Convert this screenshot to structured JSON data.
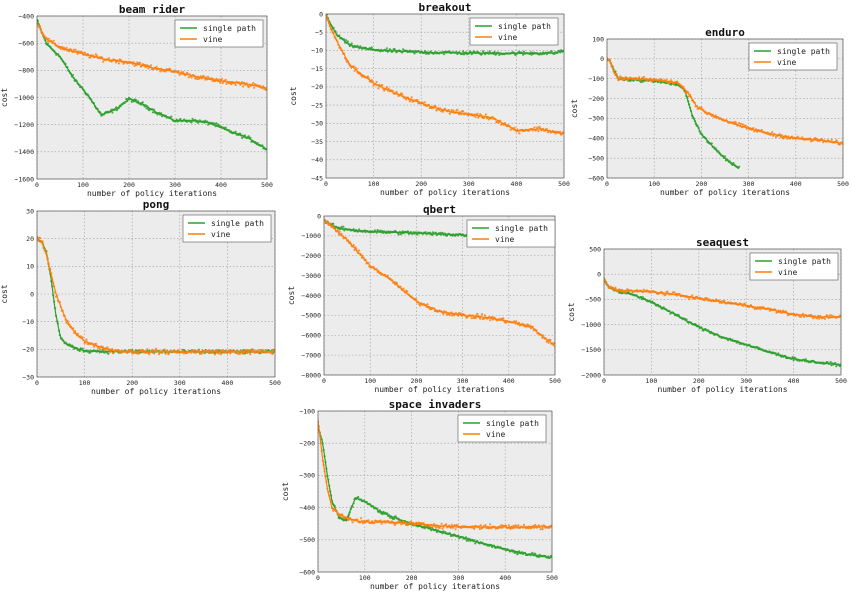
{
  "colors": {
    "single_path": "#2ca02c",
    "vine": "#ff7f0e",
    "plot_bg": "#ececec",
    "grid": "#9a9a9a"
  },
  "chart_data": [
    {
      "type": "line",
      "title": "beam rider",
      "xlabel": "number of policy iterations",
      "ylabel": "cost",
      "xlim": [
        0,
        500
      ],
      "ylim": [
        -1600,
        -400
      ],
      "xticks": [
        0,
        100,
        200,
        300,
        400,
        500
      ],
      "yticks": [
        -400,
        -600,
        -800,
        -1000,
        -1200,
        -1400,
        -1600
      ],
      "legend": [
        "single path",
        "vine"
      ],
      "series": [
        {
          "name": "single path",
          "x": [
            0,
            20,
            50,
            80,
            110,
            140,
            170,
            200,
            230,
            260,
            300,
            340,
            380,
            420,
            460,
            500
          ],
          "values": [
            -430,
            -600,
            -700,
            -860,
            -980,
            -1130,
            -1090,
            -1010,
            -1050,
            -1110,
            -1170,
            -1170,
            -1190,
            -1250,
            -1300,
            -1380
          ]
        },
        {
          "name": "vine",
          "x": [
            0,
            20,
            50,
            100,
            150,
            200,
            250,
            300,
            350,
            400,
            450,
            500
          ],
          "values": [
            -450,
            -570,
            -630,
            -680,
            -720,
            -740,
            -780,
            -810,
            -850,
            -880,
            -900,
            -930
          ]
        }
      ]
    },
    {
      "type": "line",
      "title": "breakout",
      "xlabel": "number of policy iterations",
      "ylabel": "cost",
      "xlim": [
        0,
        500
      ],
      "ylim": [
        -45,
        0
      ],
      "xticks": [
        0,
        100,
        200,
        300,
        400,
        500
      ],
      "yticks": [
        0,
        -5,
        -10,
        -15,
        -20,
        -25,
        -30,
        -35,
        -40,
        -45
      ],
      "legend": [
        "single path",
        "vine"
      ],
      "series": [
        {
          "name": "single path",
          "x": [
            0,
            10,
            25,
            50,
            80,
            120,
            200,
            300,
            400,
            480,
            500
          ],
          "values": [
            0,
            -3,
            -6,
            -8.5,
            -9.5,
            -10,
            -10.5,
            -10.7,
            -10.8,
            -10.7,
            -10
          ]
        },
        {
          "name": "vine",
          "x": [
            0,
            10,
            25,
            50,
            100,
            150,
            200,
            250,
            300,
            350,
            400,
            450,
            500
          ],
          "values": [
            0,
            -4,
            -8,
            -14,
            -19,
            -22,
            -24.5,
            -26.5,
            -27.5,
            -28.5,
            -32,
            -31.5,
            -33
          ]
        }
      ]
    },
    {
      "type": "line",
      "title": "enduro",
      "xlabel": "number of policy iterations",
      "ylabel": "cost",
      "xlim": [
        0,
        500
      ],
      "ylim": [
        -600,
        100
      ],
      "xticks": [
        0,
        100,
        200,
        300,
        400,
        500
      ],
      "yticks": [
        100,
        0,
        -100,
        -200,
        -300,
        -400,
        -500,
        -600
      ],
      "legend": [
        "single path",
        "vine"
      ],
      "series": [
        {
          "name": "single path",
          "x": [
            0,
            5,
            15,
            25,
            50,
            100,
            150,
            165,
            180,
            200,
            220,
            240,
            260,
            280
          ],
          "values": [
            0,
            -5,
            -60,
            -100,
            -105,
            -110,
            -130,
            -160,
            -280,
            -380,
            -430,
            -480,
            -520,
            -550
          ]
        },
        {
          "name": "vine",
          "x": [
            0,
            5,
            15,
            25,
            50,
            100,
            150,
            175,
            190,
            210,
            250,
            300,
            350,
            400,
            450,
            500
          ],
          "values": [
            0,
            -5,
            -70,
            -100,
            -100,
            -105,
            -120,
            -180,
            -240,
            -270,
            -310,
            -350,
            -380,
            -400,
            -410,
            -425
          ]
        }
      ]
    },
    {
      "type": "line",
      "title": "pong",
      "xlabel": "number of policy iterations",
      "ylabel": "cost",
      "xlim": [
        0,
        500
      ],
      "ylim": [
        -30,
        30
      ],
      "xticks": [
        0,
        100,
        200,
        300,
        400,
        500
      ],
      "yticks": [
        30,
        20,
        10,
        0,
        -10,
        -20,
        -30
      ],
      "legend": [
        "single path",
        "vine"
      ],
      "series": [
        {
          "name": "single path",
          "x": [
            0,
            10,
            20,
            30,
            40,
            50,
            60,
            80,
            100,
            150,
            200,
            300,
            400,
            500
          ],
          "values": [
            20,
            19,
            15,
            5,
            -8,
            -16,
            -18,
            -19.5,
            -20.5,
            -20.8,
            -20.8,
            -20.9,
            -20.9,
            -20.9
          ]
        },
        {
          "name": "vine",
          "x": [
            0,
            10,
            20,
            30,
            40,
            60,
            80,
            100,
            130,
            160,
            200,
            300,
            400,
            500
          ],
          "values": [
            20,
            19,
            14,
            7,
            0,
            -9,
            -14,
            -17,
            -19,
            -20.5,
            -20.8,
            -20.9,
            -20.9,
            -20.9
          ]
        }
      ]
    },
    {
      "type": "line",
      "title": "qbert",
      "xlabel": "number of policy iterations",
      "ylabel": "cost",
      "xlim": [
        0,
        500
      ],
      "ylim": [
        -8000,
        0
      ],
      "xticks": [
        0,
        100,
        200,
        300,
        400,
        500
      ],
      "yticks": [
        0,
        -1000,
        -2000,
        -3000,
        -4000,
        -5000,
        -6000,
        -7000,
        -8000
      ],
      "legend": [
        "single path",
        "vine"
      ],
      "series": [
        {
          "name": "single path",
          "x": [
            0,
            10,
            30,
            60,
            100,
            150,
            200,
            250,
            300,
            310
          ],
          "values": [
            -200,
            -400,
            -600,
            -700,
            -780,
            -820,
            -860,
            -900,
            -950,
            -1000
          ]
        },
        {
          "name": "vine",
          "x": [
            0,
            20,
            50,
            100,
            150,
            200,
            250,
            300,
            350,
            400,
            450,
            480,
            500
          ],
          "values": [
            -200,
            -600,
            -1200,
            -2500,
            -3300,
            -4300,
            -4800,
            -5000,
            -5100,
            -5300,
            -5600,
            -6200,
            -6500
          ]
        }
      ]
    },
    {
      "type": "line",
      "title": "seaquest",
      "xlabel": "number of policy iterations",
      "ylabel": "cost",
      "xlim": [
        0,
        500
      ],
      "ylim": [
        -2000,
        500
      ],
      "xticks": [
        0,
        100,
        200,
        300,
        400,
        500
      ],
      "yticks": [
        500,
        0,
        -500,
        -1000,
        -1500,
        -2000
      ],
      "legend": [
        "single path",
        "vine"
      ],
      "series": [
        {
          "name": "single path",
          "x": [
            0,
            10,
            30,
            60,
            100,
            150,
            200,
            250,
            300,
            350,
            400,
            450,
            500
          ],
          "values": [
            -100,
            -250,
            -350,
            -400,
            -550,
            -800,
            -1050,
            -1250,
            -1400,
            -1550,
            -1680,
            -1750,
            -1800
          ]
        },
        {
          "name": "vine",
          "x": [
            0,
            10,
            30,
            60,
            100,
            150,
            200,
            250,
            300,
            350,
            400,
            450,
            500
          ],
          "values": [
            -100,
            -250,
            -320,
            -330,
            -350,
            -400,
            -480,
            -550,
            -620,
            -700,
            -800,
            -850,
            -850
          ]
        }
      ]
    },
    {
      "type": "line",
      "title": "space invaders",
      "xlabel": "number of policy iterations",
      "ylabel": "cost",
      "xlim": [
        0,
        500
      ],
      "ylim": [
        -600,
        -100
      ],
      "xticks": [
        0,
        100,
        200,
        300,
        400,
        500
      ],
      "yticks": [
        -100,
        -200,
        -300,
        -400,
        -500,
        -600
      ],
      "legend": [
        "single path",
        "vine"
      ],
      "series": [
        {
          "name": "single path",
          "x": [
            0,
            10,
            20,
            30,
            45,
            60,
            80,
            100,
            130,
            160,
            200,
            250,
            300,
            350,
            400,
            450,
            500
          ],
          "values": [
            -150,
            -200,
            -300,
            -380,
            -430,
            -440,
            -370,
            -380,
            -410,
            -430,
            -450,
            -470,
            -490,
            -510,
            -530,
            -545,
            -555
          ]
        },
        {
          "name": "vine",
          "x": [
            0,
            10,
            20,
            30,
            45,
            60,
            80,
            100,
            150,
            200,
            250,
            300,
            350,
            400,
            450,
            500
          ],
          "values": [
            -130,
            -250,
            -340,
            -400,
            -420,
            -430,
            -440,
            -445,
            -445,
            -450,
            -455,
            -460,
            -460,
            -460,
            -460,
            -460
          ]
        }
      ]
    }
  ]
}
